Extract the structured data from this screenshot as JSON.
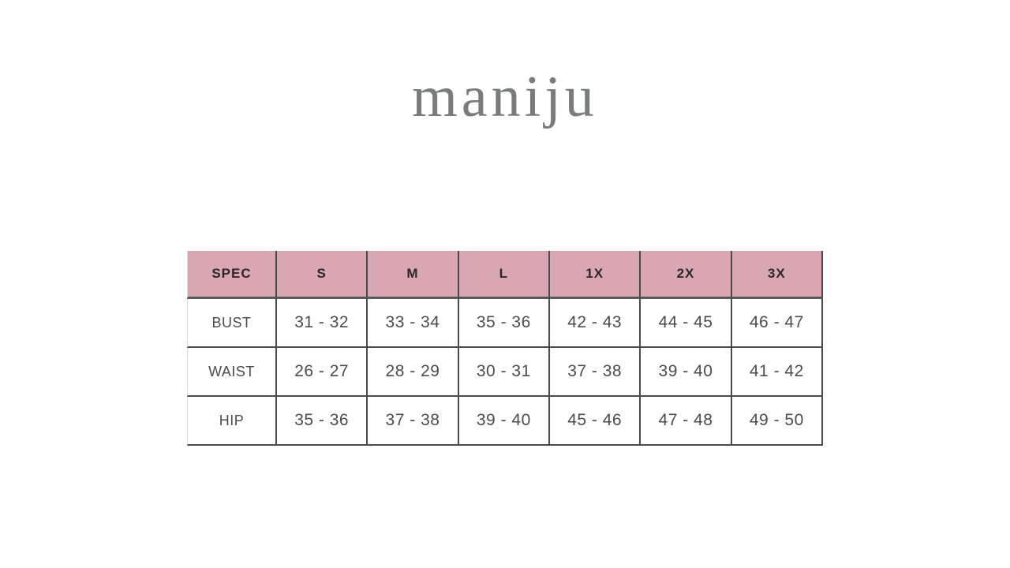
{
  "brand": {
    "logo_text": "maniju"
  },
  "colors": {
    "logo_gray": "#7a7b7d",
    "header_pink": "#d9a7b1",
    "header_text": "#2b2628",
    "body_text": "#4c4c4e",
    "grid_border": "#4b4b4d",
    "page_background": "#ffffff"
  },
  "chart_data": {
    "type": "table",
    "columns": [
      "SPEC",
      "S",
      "M",
      "L",
      "1X",
      "2X",
      "3X"
    ],
    "rows": [
      {
        "label": "BUST",
        "values": [
          "31 - 32",
          "33 - 34",
          "35 - 36",
          "42 - 43",
          "44 - 45",
          "46 - 47"
        ]
      },
      {
        "label": "WAIST",
        "values": [
          "26 - 27",
          "28 - 29",
          "30 - 31",
          "37 - 38",
          "39 - 40",
          "41 - 42"
        ]
      },
      {
        "label": "HIP",
        "values": [
          "35 - 36",
          "37 - 38",
          "39 - 40",
          "45 - 46",
          "47 - 48",
          "49 - 50"
        ]
      }
    ],
    "layout": {
      "header_fill": "#d9a7b1",
      "grid_on": true,
      "top_border": false
    }
  }
}
